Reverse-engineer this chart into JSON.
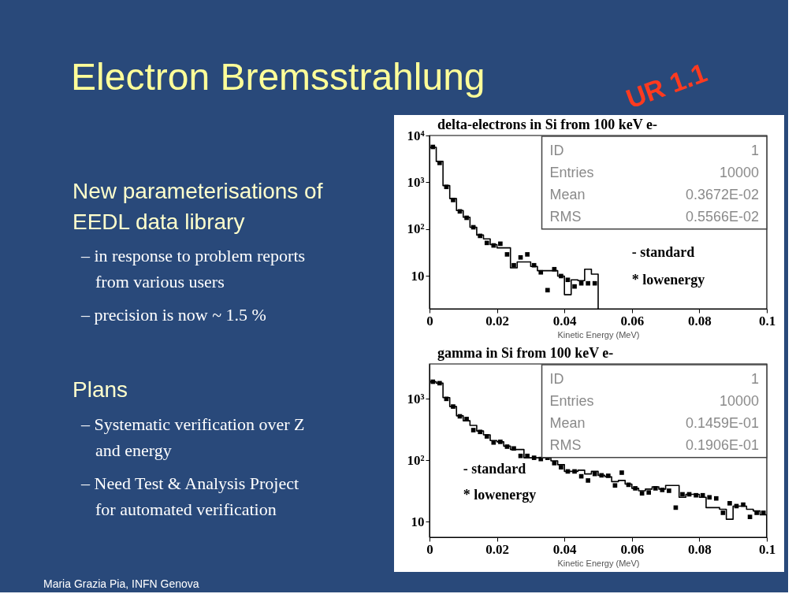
{
  "chart_data": [
    {
      "type": "histogram",
      "title": "delta-electrons in Si from 100 keV e-",
      "xlabel": "Kinetic Energy (MeV)",
      "bins": [
        0,
        0.002,
        0.004,
        0.006,
        0.008,
        0.01,
        0.012,
        0.014,
        0.016,
        0.018,
        0.02,
        0.022,
        0.024,
        0.026,
        0.028,
        0.03,
        0.032,
        0.034,
        0.036,
        0.038,
        0.04,
        0.042,
        0.044,
        0.046,
        0.048,
        0.05
      ],
      "series": [
        {
          "name": "- standard",
          "color": "#000000",
          "values": [
            5600,
            2800,
            850,
            450,
            250,
            180,
            110,
            75,
            62,
            47,
            40,
            40,
            15,
            20,
            20,
            16,
            13,
            13,
            13,
            10,
            4,
            8.3,
            8,
            14,
            11
          ]
        },
        {
          "name": "* lowenergy",
          "type": "scatter",
          "color": "#000000",
          "x": [
            0.001,
            0.003,
            0.005,
            0.007,
            0.009,
            0.011,
            0.013,
            0.015,
            0.017,
            0.019,
            0.021,
            0.023,
            0.025,
            0.027,
            0.029,
            0.031,
            0.033,
            0.035,
            0.037,
            0.039,
            0.041,
            0.043,
            0.045,
            0.047,
            0.049
          ],
          "values": [
            5700,
            2600,
            800,
            420,
            240,
            175,
            110,
            72,
            51,
            45,
            49,
            29,
            17,
            25,
            29,
            17,
            12,
            5,
            14,
            10,
            8.3,
            6,
            7,
            7,
            7
          ]
        }
      ],
      "xlim": [
        0,
        0.1
      ],
      "xticks": [
        0,
        0.02,
        0.04,
        0.06,
        0.08,
        0.1
      ],
      "ylim": [
        2,
        10000
      ],
      "yticks": [
        10,
        {
          "value": 100,
          "label": "10²"
        },
        {
          "value": 1000,
          "label": "10³"
        },
        {
          "value": 10000,
          "label": "10⁴"
        }
      ],
      "log": true,
      "marker": "square",
      "legend": "bottom right",
      "annotations": [
        "ID 1",
        "Entries 10000",
        "Mean 0.3672E-02",
        "RMS 0.5566E-02",
        "Electron Bremsstrahlung",
        "UR 1.1",
        "New parameterisations of EEDL data library",
        "– in response to problem reports from various users",
        "– precision is now ~ 1.5 %",
        "Plans",
        "– Systematic verification over Z and energy",
        "– Need Test & Analysis Project for automated verification",
        "Maria Grazia Pia, INFN Genova"
      ]
    },
    {
      "type": "histogram",
      "title": "gamma in Si from 100 keV e-",
      "xlabel": "Kinetic Energy (MeV)",
      "bins": [
        0,
        0.002,
        0.004,
        0.006,
        0.008,
        0.01,
        0.012,
        0.014,
        0.016,
        0.018,
        0.02,
        0.022,
        0.024,
        0.026,
        0.028,
        0.03,
        0.032,
        0.034,
        0.036,
        0.038,
        0.04,
        0.042,
        0.044,
        0.046,
        0.048,
        0.05,
        0.052,
        0.054,
        0.056,
        0.058,
        0.06,
        0.062,
        0.064,
        0.066,
        0.068,
        0.07,
        0.072,
        0.074,
        0.076,
        0.078,
        0.08,
        0.082,
        0.084,
        0.086,
        0.088,
        0.09,
        0.092,
        0.094,
        0.096,
        0.098,
        0.1
      ],
      "series": [
        {
          "name": "- standard",
          "color": "#000000",
          "values": [
            1900,
            1800,
            1050,
            750,
            530,
            440,
            370,
            300,
            260,
            210,
            200,
            170,
            150,
            150,
            110,
            110,
            110,
            110,
            98,
            85,
            66,
            66,
            69,
            60,
            66,
            57,
            54,
            45,
            47,
            41,
            35,
            32,
            34,
            37,
            34,
            39,
            39,
            25,
            28,
            28,
            25,
            17,
            17,
            16,
            11,
            18,
            18,
            16,
            15,
            13
          ]
        },
        {
          "name": "* lowenergy",
          "type": "scatter",
          "color": "#000000",
          "x": [
            0.001,
            0.003,
            0.005,
            0.007,
            0.009,
            0.011,
            0.013,
            0.015,
            0.017,
            0.019,
            0.021,
            0.023,
            0.025,
            0.027,
            0.029,
            0.031,
            0.033,
            0.035,
            0.037,
            0.039,
            0.041,
            0.043,
            0.045,
            0.047,
            0.049,
            0.051,
            0.053,
            0.055,
            0.057,
            0.059,
            0.061,
            0.063,
            0.065,
            0.067,
            0.069,
            0.071,
            0.073,
            0.075,
            0.077,
            0.079,
            0.081,
            0.083,
            0.085,
            0.087,
            0.089,
            0.091,
            0.093,
            0.095,
            0.097,
            0.099
          ],
          "values": [
            1900,
            1800,
            1000,
            750,
            520,
            470,
            310,
            290,
            245,
            195,
            200,
            167,
            156,
            118,
            118,
            110,
            105,
            110,
            90,
            77,
            66,
            66,
            55,
            47,
            60,
            57,
            56,
            39,
            63,
            40,
            35,
            29,
            30,
            35,
            33,
            32,
            17,
            28,
            28,
            27,
            27,
            25,
            24,
            14,
            20,
            18,
            19,
            12,
            14,
            14
          ]
        }
      ],
      "xlim": [
        0,
        0.1
      ],
      "xticks": [
        0,
        0.02,
        0.04,
        0.06,
        0.08,
        0.1
      ],
      "ylim": [
        5.6,
        3700
      ],
      "yticks": [
        10,
        {
          "value": 100,
          "label": "10²"
        },
        {
          "value": 1000,
          "label": "10³"
        }
      ],
      "log": true,
      "marker": "square",
      "legend": "left",
      "annotations": [
        "ID 1",
        "Entries 10000",
        "Mean 0.1459E-01",
        "RMS 0.1906E-01"
      ]
    }
  ]
}
